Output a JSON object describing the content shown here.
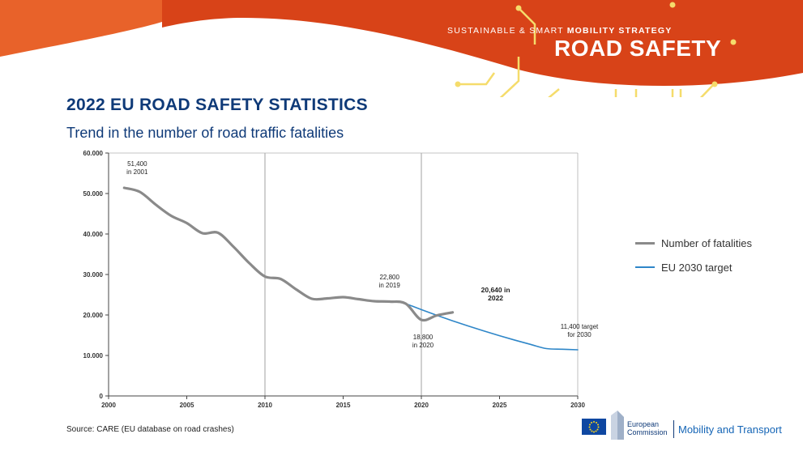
{
  "header": {
    "tagline_regular": "SUSTAINABLE & SMART",
    "tagline_bold": "MOBILITY STRATEGY",
    "banner_title": "ROAD SAFETY"
  },
  "title": "2022 EU ROAD SAFETY STATISTICS",
  "subtitle": "Trend in the number of road traffic fatalities",
  "source": "Source: CARE (EU database on road crashes)",
  "footer": {
    "logo_line1": "European",
    "logo_line2": "Commission",
    "department": "Mobility and Transport"
  },
  "colors": {
    "banner_orange": "#e8622a",
    "banner_red": "#d84318",
    "circuit_yellow": "#f5dc6b",
    "title_blue": "#0f3a78",
    "fatalities_gray": "#8a8a8a",
    "target_blue": "#2e86c8"
  },
  "chart_data": {
    "type": "line",
    "xlim": [
      2000,
      2030
    ],
    "ylim": [
      0,
      60000
    ],
    "x_ticks": [
      "2000",
      "2005",
      "2010",
      "2015",
      "2020",
      "2025",
      "2030"
    ],
    "y_ticks": [
      "0",
      "10.000",
      "20.000",
      "30.000",
      "40.000",
      "50.000",
      "60.000"
    ],
    "reference_lines_x": [
      2010,
      2020
    ],
    "grid": false,
    "legend_position": "right",
    "series": [
      {
        "name": "Number of fatalities",
        "color": "#8a8a8a",
        "x": [
          2001,
          2002,
          2003,
          2004,
          2005,
          2006,
          2007,
          2008,
          2009,
          2010,
          2011,
          2012,
          2013,
          2014,
          2015,
          2016,
          2017,
          2018,
          2019,
          2020,
          2021,
          2022
        ],
        "y": [
          51400,
          50400,
          47300,
          44500,
          42700,
          40200,
          40300,
          36800,
          32800,
          29500,
          28900,
          26300,
          24000,
          24100,
          24400,
          23900,
          23400,
          23300,
          22800,
          18800,
          19900,
          20640
        ]
      },
      {
        "name": "EU 2030 target",
        "color": "#2e86c8",
        "x": [
          2019,
          2020,
          2021,
          2022,
          2023,
          2024,
          2025,
          2026,
          2027,
          2028,
          2029,
          2030
        ],
        "y": [
          22800,
          21330,
          19910,
          18560,
          17270,
          16040,
          14870,
          13760,
          12710,
          11700,
          11540,
          11400
        ]
      }
    ],
    "annotations": [
      {
        "lines": [
          "51,400",
          "in 2001"
        ],
        "x": 2001,
        "y": 51400,
        "bold": false
      },
      {
        "lines": [
          "22,800",
          "in 2019"
        ],
        "x": 2019,
        "y": 22800,
        "bold": false
      },
      {
        "lines": [
          "18,800",
          "in 2020"
        ],
        "x": 2020,
        "y": 18800,
        "bold": false
      },
      {
        "lines": [
          "20,640 in",
          "2022"
        ],
        "x": 2022,
        "y": 20640,
        "bold": true
      },
      {
        "lines": [
          "11,400 target",
          "for 2030"
        ],
        "x": 2030,
        "y": 11400,
        "bold": false
      }
    ]
  }
}
